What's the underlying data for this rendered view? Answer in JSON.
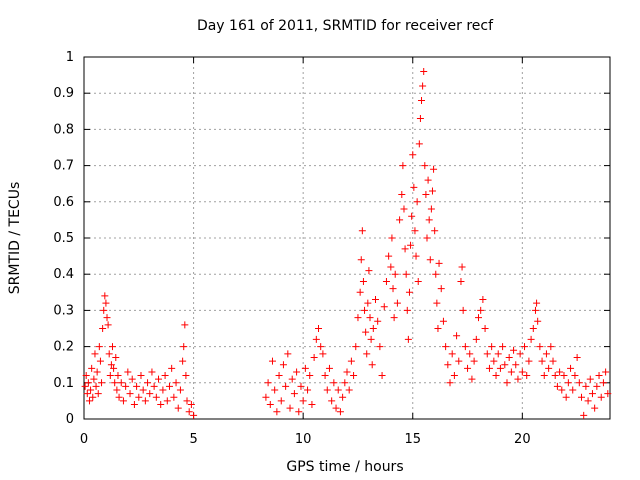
{
  "chart_data": {
    "type": "scatter",
    "title": "Day 161 of 2011, SRMTID for receiver recf",
    "xlabel": "GPS time / hours",
    "ylabel": "SRMTID / TECUs",
    "xlim": [
      0,
      24
    ],
    "ylim": [
      0,
      1
    ],
    "xticks": [
      0,
      5,
      10,
      15,
      20
    ],
    "yticks": [
      0,
      0.1,
      0.2,
      0.3,
      0.4,
      0.5,
      0.6,
      0.7,
      0.8,
      0.9,
      1
    ],
    "xtick_labels": [
      "0",
      "5",
      "10",
      "15",
      "20"
    ],
    "ytick_labels": [
      "0",
      "0.1",
      "0.2",
      "0.3",
      "0.4",
      "0.5",
      "0.6",
      "0.7",
      "0.8",
      "0.9",
      "1"
    ],
    "grid": true,
    "marker": "plus",
    "color": "#ff0000",
    "series": [
      {
        "name": "SRMTID",
        "points": [
          [
            0.05,
            0.09
          ],
          [
            0.1,
            0.12
          ],
          [
            0.15,
            0.07
          ],
          [
            0.2,
            0.1
          ],
          [
            0.25,
            0.05
          ],
          [
            0.3,
            0.08
          ],
          [
            0.35,
            0.14
          ],
          [
            0.4,
            0.06
          ],
          [
            0.45,
            0.11
          ],
          [
            0.5,
            0.18
          ],
          [
            0.55,
            0.09
          ],
          [
            0.6,
            0.13
          ],
          [
            0.65,
            0.07
          ],
          [
            0.7,
            0.2
          ],
          [
            0.75,
            0.16
          ],
          [
            0.8,
            0.1
          ],
          [
            0.85,
            0.25
          ],
          [
            0.9,
            0.3
          ],
          [
            0.95,
            0.34
          ],
          [
            1.0,
            0.32
          ],
          [
            1.05,
            0.28
          ],
          [
            1.1,
            0.26
          ],
          [
            1.15,
            0.18
          ],
          [
            1.2,
            0.12
          ],
          [
            1.25,
            0.15
          ],
          [
            1.3,
            0.2
          ],
          [
            1.35,
            0.14
          ],
          [
            1.4,
            0.1
          ],
          [
            1.45,
            0.17
          ],
          [
            1.5,
            0.08
          ],
          [
            1.55,
            0.12
          ],
          [
            1.6,
            0.06
          ],
          [
            1.7,
            0.1
          ],
          [
            1.8,
            0.05
          ],
          [
            1.9,
            0.09
          ],
          [
            2.0,
            0.13
          ],
          [
            2.1,
            0.07
          ],
          [
            2.2,
            0.11
          ],
          [
            2.3,
            0.04
          ],
          [
            2.4,
            0.09
          ],
          [
            2.5,
            0.06
          ],
          [
            2.6,
            0.12
          ],
          [
            2.7,
            0.08
          ],
          [
            2.8,
            0.05
          ],
          [
            2.9,
            0.1
          ],
          [
            3.0,
            0.07
          ],
          [
            3.1,
            0.13
          ],
          [
            3.2,
            0.09
          ],
          [
            3.3,
            0.06
          ],
          [
            3.4,
            0.11
          ],
          [
            3.5,
            0.04
          ],
          [
            3.6,
            0.08
          ],
          [
            3.7,
            0.12
          ],
          [
            3.8,
            0.05
          ],
          [
            3.9,
            0.09
          ],
          [
            4.0,
            0.14
          ],
          [
            4.1,
            0.06
          ],
          [
            4.2,
            0.1
          ],
          [
            4.3,
            0.03
          ],
          [
            4.4,
            0.08
          ],
          [
            4.5,
            0.16
          ],
          [
            4.55,
            0.2
          ],
          [
            4.6,
            0.26
          ],
          [
            4.65,
            0.12
          ],
          [
            4.7,
            0.05
          ],
          [
            4.8,
            0.02
          ],
          [
            4.9,
            0.04
          ],
          [
            5.0,
            0.01
          ],
          [
            8.3,
            0.06
          ],
          [
            8.4,
            0.1
          ],
          [
            8.5,
            0.04
          ],
          [
            8.6,
            0.16
          ],
          [
            8.7,
            0.08
          ],
          [
            8.8,
            0.02
          ],
          [
            8.9,
            0.12
          ],
          [
            9.0,
            0.05
          ],
          [
            9.1,
            0.15
          ],
          [
            9.2,
            0.09
          ],
          [
            9.3,
            0.18
          ],
          [
            9.4,
            0.03
          ],
          [
            9.5,
            0.11
          ],
          [
            9.6,
            0.07
          ],
          [
            9.7,
            0.13
          ],
          [
            9.8,
            0.02
          ],
          [
            9.9,
            0.09
          ],
          [
            10.0,
            0.05
          ],
          [
            10.1,
            0.14
          ],
          [
            10.2,
            0.08
          ],
          [
            10.3,
            0.12
          ],
          [
            10.4,
            0.04
          ],
          [
            10.5,
            0.17
          ],
          [
            10.6,
            0.22
          ],
          [
            10.7,
            0.25
          ],
          [
            10.8,
            0.2
          ],
          [
            10.9,
            0.18
          ],
          [
            11.0,
            0.12
          ],
          [
            11.1,
            0.08
          ],
          [
            11.2,
            0.14
          ],
          [
            11.3,
            0.05
          ],
          [
            11.4,
            0.1
          ],
          [
            11.5,
            0.03
          ],
          [
            11.6,
            0.08
          ],
          [
            11.7,
            0.02
          ],
          [
            11.8,
            0.06
          ],
          [
            11.9,
            0.1
          ],
          [
            12.0,
            0.13
          ],
          [
            12.1,
            0.08
          ],
          [
            12.2,
            0.16
          ],
          [
            12.3,
            0.12
          ],
          [
            12.4,
            0.2
          ],
          [
            12.5,
            0.28
          ],
          [
            12.6,
            0.35
          ],
          [
            12.65,
            0.44
          ],
          [
            12.7,
            0.52
          ],
          [
            12.75,
            0.38
          ],
          [
            12.8,
            0.3
          ],
          [
            12.85,
            0.24
          ],
          [
            12.9,
            0.18
          ],
          [
            12.95,
            0.32
          ],
          [
            13.0,
            0.41
          ],
          [
            13.05,
            0.28
          ],
          [
            13.1,
            0.22
          ],
          [
            13.15,
            0.15
          ],
          [
            13.2,
            0.25
          ],
          [
            13.3,
            0.33
          ],
          [
            13.4,
            0.27
          ],
          [
            13.5,
            0.2
          ],
          [
            13.6,
            0.12
          ],
          [
            13.7,
            0.31
          ],
          [
            13.8,
            0.38
          ],
          [
            13.9,
            0.45
          ],
          [
            14.0,
            0.42
          ],
          [
            14.05,
            0.5
          ],
          [
            14.1,
            0.36
          ],
          [
            14.15,
            0.28
          ],
          [
            14.2,
            0.4
          ],
          [
            14.3,
            0.32
          ],
          [
            14.4,
            0.55
          ],
          [
            14.5,
            0.62
          ],
          [
            14.55,
            0.7
          ],
          [
            14.6,
            0.58
          ],
          [
            14.65,
            0.47
          ],
          [
            14.7,
            0.4
          ],
          [
            14.75,
            0.3
          ],
          [
            14.8,
            0.22
          ],
          [
            14.85,
            0.35
          ],
          [
            14.9,
            0.48
          ],
          [
            14.95,
            0.56
          ],
          [
            15.0,
            0.73
          ],
          [
            15.05,
            0.64
          ],
          [
            15.1,
            0.52
          ],
          [
            15.15,
            0.45
          ],
          [
            15.2,
            0.6
          ],
          [
            15.25,
            0.38
          ],
          [
            15.3,
            0.76
          ],
          [
            15.35,
            0.83
          ],
          [
            15.4,
            0.88
          ],
          [
            15.45,
            0.92
          ],
          [
            15.5,
            0.96
          ],
          [
            15.55,
            0.7
          ],
          [
            15.6,
            0.62
          ],
          [
            15.65,
            0.5
          ],
          [
            15.7,
            0.66
          ],
          [
            15.75,
            0.55
          ],
          [
            15.8,
            0.44
          ],
          [
            15.85,
            0.58
          ],
          [
            15.9,
            0.63
          ],
          [
            15.95,
            0.69
          ],
          [
            16.0,
            0.52
          ],
          [
            16.05,
            0.4
          ],
          [
            16.1,
            0.32
          ],
          [
            16.15,
            0.25
          ],
          [
            16.2,
            0.43
          ],
          [
            16.3,
            0.36
          ],
          [
            16.4,
            0.27
          ],
          [
            16.5,
            0.2
          ],
          [
            16.6,
            0.15
          ],
          [
            16.7,
            0.1
          ],
          [
            16.8,
            0.18
          ],
          [
            16.9,
            0.12
          ],
          [
            17.0,
            0.23
          ],
          [
            17.1,
            0.16
          ],
          [
            17.2,
            0.38
          ],
          [
            17.25,
            0.42
          ],
          [
            17.3,
            0.3
          ],
          [
            17.4,
            0.2
          ],
          [
            17.5,
            0.14
          ],
          [
            17.6,
            0.18
          ],
          [
            17.7,
            0.11
          ],
          [
            17.8,
            0.16
          ],
          [
            17.9,
            0.22
          ],
          [
            18.0,
            0.28
          ],
          [
            18.1,
            0.3
          ],
          [
            18.2,
            0.33
          ],
          [
            18.3,
            0.25
          ],
          [
            18.4,
            0.18
          ],
          [
            18.5,
            0.14
          ],
          [
            18.6,
            0.2
          ],
          [
            18.7,
            0.16
          ],
          [
            18.8,
            0.12
          ],
          [
            18.9,
            0.18
          ],
          [
            19.0,
            0.14
          ],
          [
            19.1,
            0.2
          ],
          [
            19.2,
            0.15
          ],
          [
            19.3,
            0.1
          ],
          [
            19.4,
            0.17
          ],
          [
            19.5,
            0.13
          ],
          [
            19.6,
            0.19
          ],
          [
            19.7,
            0.15
          ],
          [
            19.8,
            0.11
          ],
          [
            19.9,
            0.18
          ],
          [
            20.0,
            0.13
          ],
          [
            20.1,
            0.2
          ],
          [
            20.2,
            0.12
          ],
          [
            20.3,
            0.16
          ],
          [
            20.4,
            0.22
          ],
          [
            20.5,
            0.25
          ],
          [
            20.6,
            0.3
          ],
          [
            20.65,
            0.32
          ],
          [
            20.7,
            0.27
          ],
          [
            20.8,
            0.2
          ],
          [
            20.9,
            0.16
          ],
          [
            21.0,
            0.12
          ],
          [
            21.1,
            0.18
          ],
          [
            21.2,
            0.14
          ],
          [
            21.3,
            0.2
          ],
          [
            21.4,
            0.16
          ],
          [
            21.5,
            0.12
          ],
          [
            21.6,
            0.09
          ],
          [
            21.7,
            0.13
          ],
          [
            21.8,
            0.08
          ],
          [
            21.9,
            0.12
          ],
          [
            22.0,
            0.06
          ],
          [
            22.1,
            0.1
          ],
          [
            22.2,
            0.14
          ],
          [
            22.3,
            0.08
          ],
          [
            22.4,
            0.12
          ],
          [
            22.5,
            0.17
          ],
          [
            22.6,
            0.1
          ],
          [
            22.7,
            0.06
          ],
          [
            22.8,
            0.01
          ],
          [
            22.9,
            0.09
          ],
          [
            23.0,
            0.05
          ],
          [
            23.1,
            0.11
          ],
          [
            23.2,
            0.07
          ],
          [
            23.3,
            0.03
          ],
          [
            23.4,
            0.09
          ],
          [
            23.5,
            0.12
          ],
          [
            23.6,
            0.06
          ],
          [
            23.7,
            0.1
          ],
          [
            23.8,
            0.13
          ],
          [
            23.9,
            0.07
          ]
        ]
      }
    ]
  }
}
